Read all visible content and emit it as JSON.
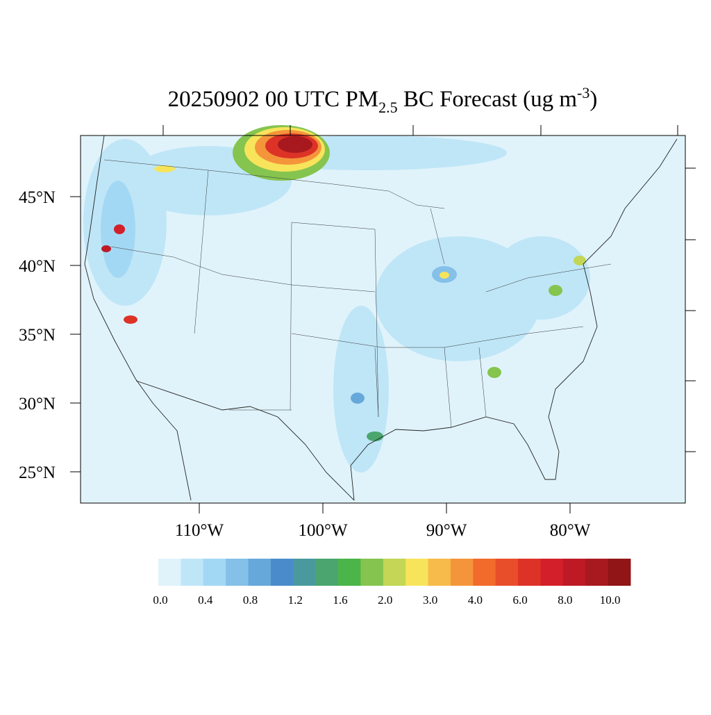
{
  "title_parts": [
    "20250902 00 UTC PM",
    "2.5",
    " BC Forecast (ug m",
    "-3",
    ")"
  ],
  "lat_labels": [
    "45°N",
    "40°N",
    "35°N",
    "30°N",
    "25°N"
  ],
  "lon_labels": [
    "110°W",
    "100°W",
    "90°W",
    "80°W"
  ],
  "colorbar": {
    "colors": [
      "#e0f3fb",
      "#bfe6f7",
      "#a3d8f5",
      "#84c0e8",
      "#67a8da",
      "#4a8ccb",
      "#4a9a9d",
      "#4aa66e",
      "#4bb549",
      "#85c44f",
      "#c3d655",
      "#f7e45b",
      "#f7bb4b",
      "#f5953b",
      "#f26b2b",
      "#e84e2a",
      "#dd3327",
      "#d21f2a",
      "#bd1a26",
      "#a8191f",
      "#911517"
    ],
    "labels": [
      "0.0",
      "0.4",
      "0.8",
      "1.2",
      "1.6",
      "2.0",
      "3.0",
      "4.0",
      "6.0",
      "8.0",
      "10.0"
    ]
  }
}
